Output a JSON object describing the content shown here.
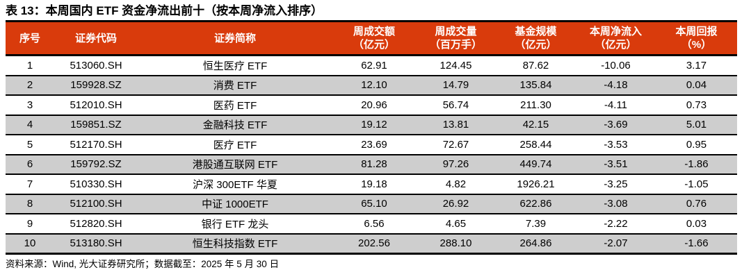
{
  "page": {
    "title": "表 13：本周国内 ETF 资金净流出前十（按本周净流入排序）",
    "source_note": "资料来源：Wind, 光大证券研究所；数据截至：2025 年 5 月 30 日"
  },
  "colors": {
    "header_bg": "#D93B0C",
    "header_text": "#FFFFFF",
    "stripe_bg": "#CECECE",
    "border": "#000000"
  },
  "table": {
    "columns": [
      {
        "key": "rank",
        "label": "序号",
        "unit": ""
      },
      {
        "key": "code",
        "label": "证券代码",
        "unit": ""
      },
      {
        "key": "name",
        "label": "证券简称",
        "unit": ""
      },
      {
        "key": "weekly_turnover",
        "label": "周成交额",
        "unit": "（亿元）"
      },
      {
        "key": "weekly_volume",
        "label": "周成交量",
        "unit": "（百万手）"
      },
      {
        "key": "fund_size",
        "label": "基金规模",
        "unit": "（亿元）"
      },
      {
        "key": "weekly_net_inflow",
        "label": "本周净流入",
        "unit": "（亿元）"
      },
      {
        "key": "weekly_return",
        "label": "本周回报",
        "unit": "（%）"
      }
    ],
    "rows": [
      [
        "1",
        "513060.SH",
        "恒生医疗 ETF",
        "62.91",
        "124.45",
        "87.62",
        "-10.06",
        "3.17"
      ],
      [
        "2",
        "159928.SZ",
        "消费 ETF",
        "12.10",
        "14.79",
        "135.84",
        "-4.18",
        "0.04"
      ],
      [
        "3",
        "512010.SH",
        "医药 ETF",
        "20.96",
        "56.74",
        "211.30",
        "-4.11",
        "0.73"
      ],
      [
        "4",
        "159851.SZ",
        "金融科技 ETF",
        "19.12",
        "13.81",
        "42.15",
        "-3.69",
        "5.01"
      ],
      [
        "5",
        "512170.SH",
        "医疗 ETF",
        "23.69",
        "72.67",
        "258.44",
        "-3.53",
        "0.95"
      ],
      [
        "6",
        "159792.SZ",
        "港股通互联网 ETF",
        "81.28",
        "97.26",
        "449.74",
        "-3.51",
        "-1.86"
      ],
      [
        "7",
        "510330.SH",
        "沪深 300ETF 华夏",
        "19.18",
        "4.82",
        "1926.21",
        "-3.25",
        "-1.05"
      ],
      [
        "8",
        "512100.SH",
        "中证 1000ETF",
        "65.10",
        "26.92",
        "622.86",
        "-3.08",
        "0.76"
      ],
      [
        "9",
        "512820.SH",
        "银行 ETF 龙头",
        "6.56",
        "4.65",
        "7.39",
        "-2.22",
        "0.03"
      ],
      [
        "10",
        "513180.SH",
        "恒生科技指数 ETF",
        "202.56",
        "288.10",
        "264.86",
        "-2.07",
        "-1.66"
      ]
    ]
  }
}
